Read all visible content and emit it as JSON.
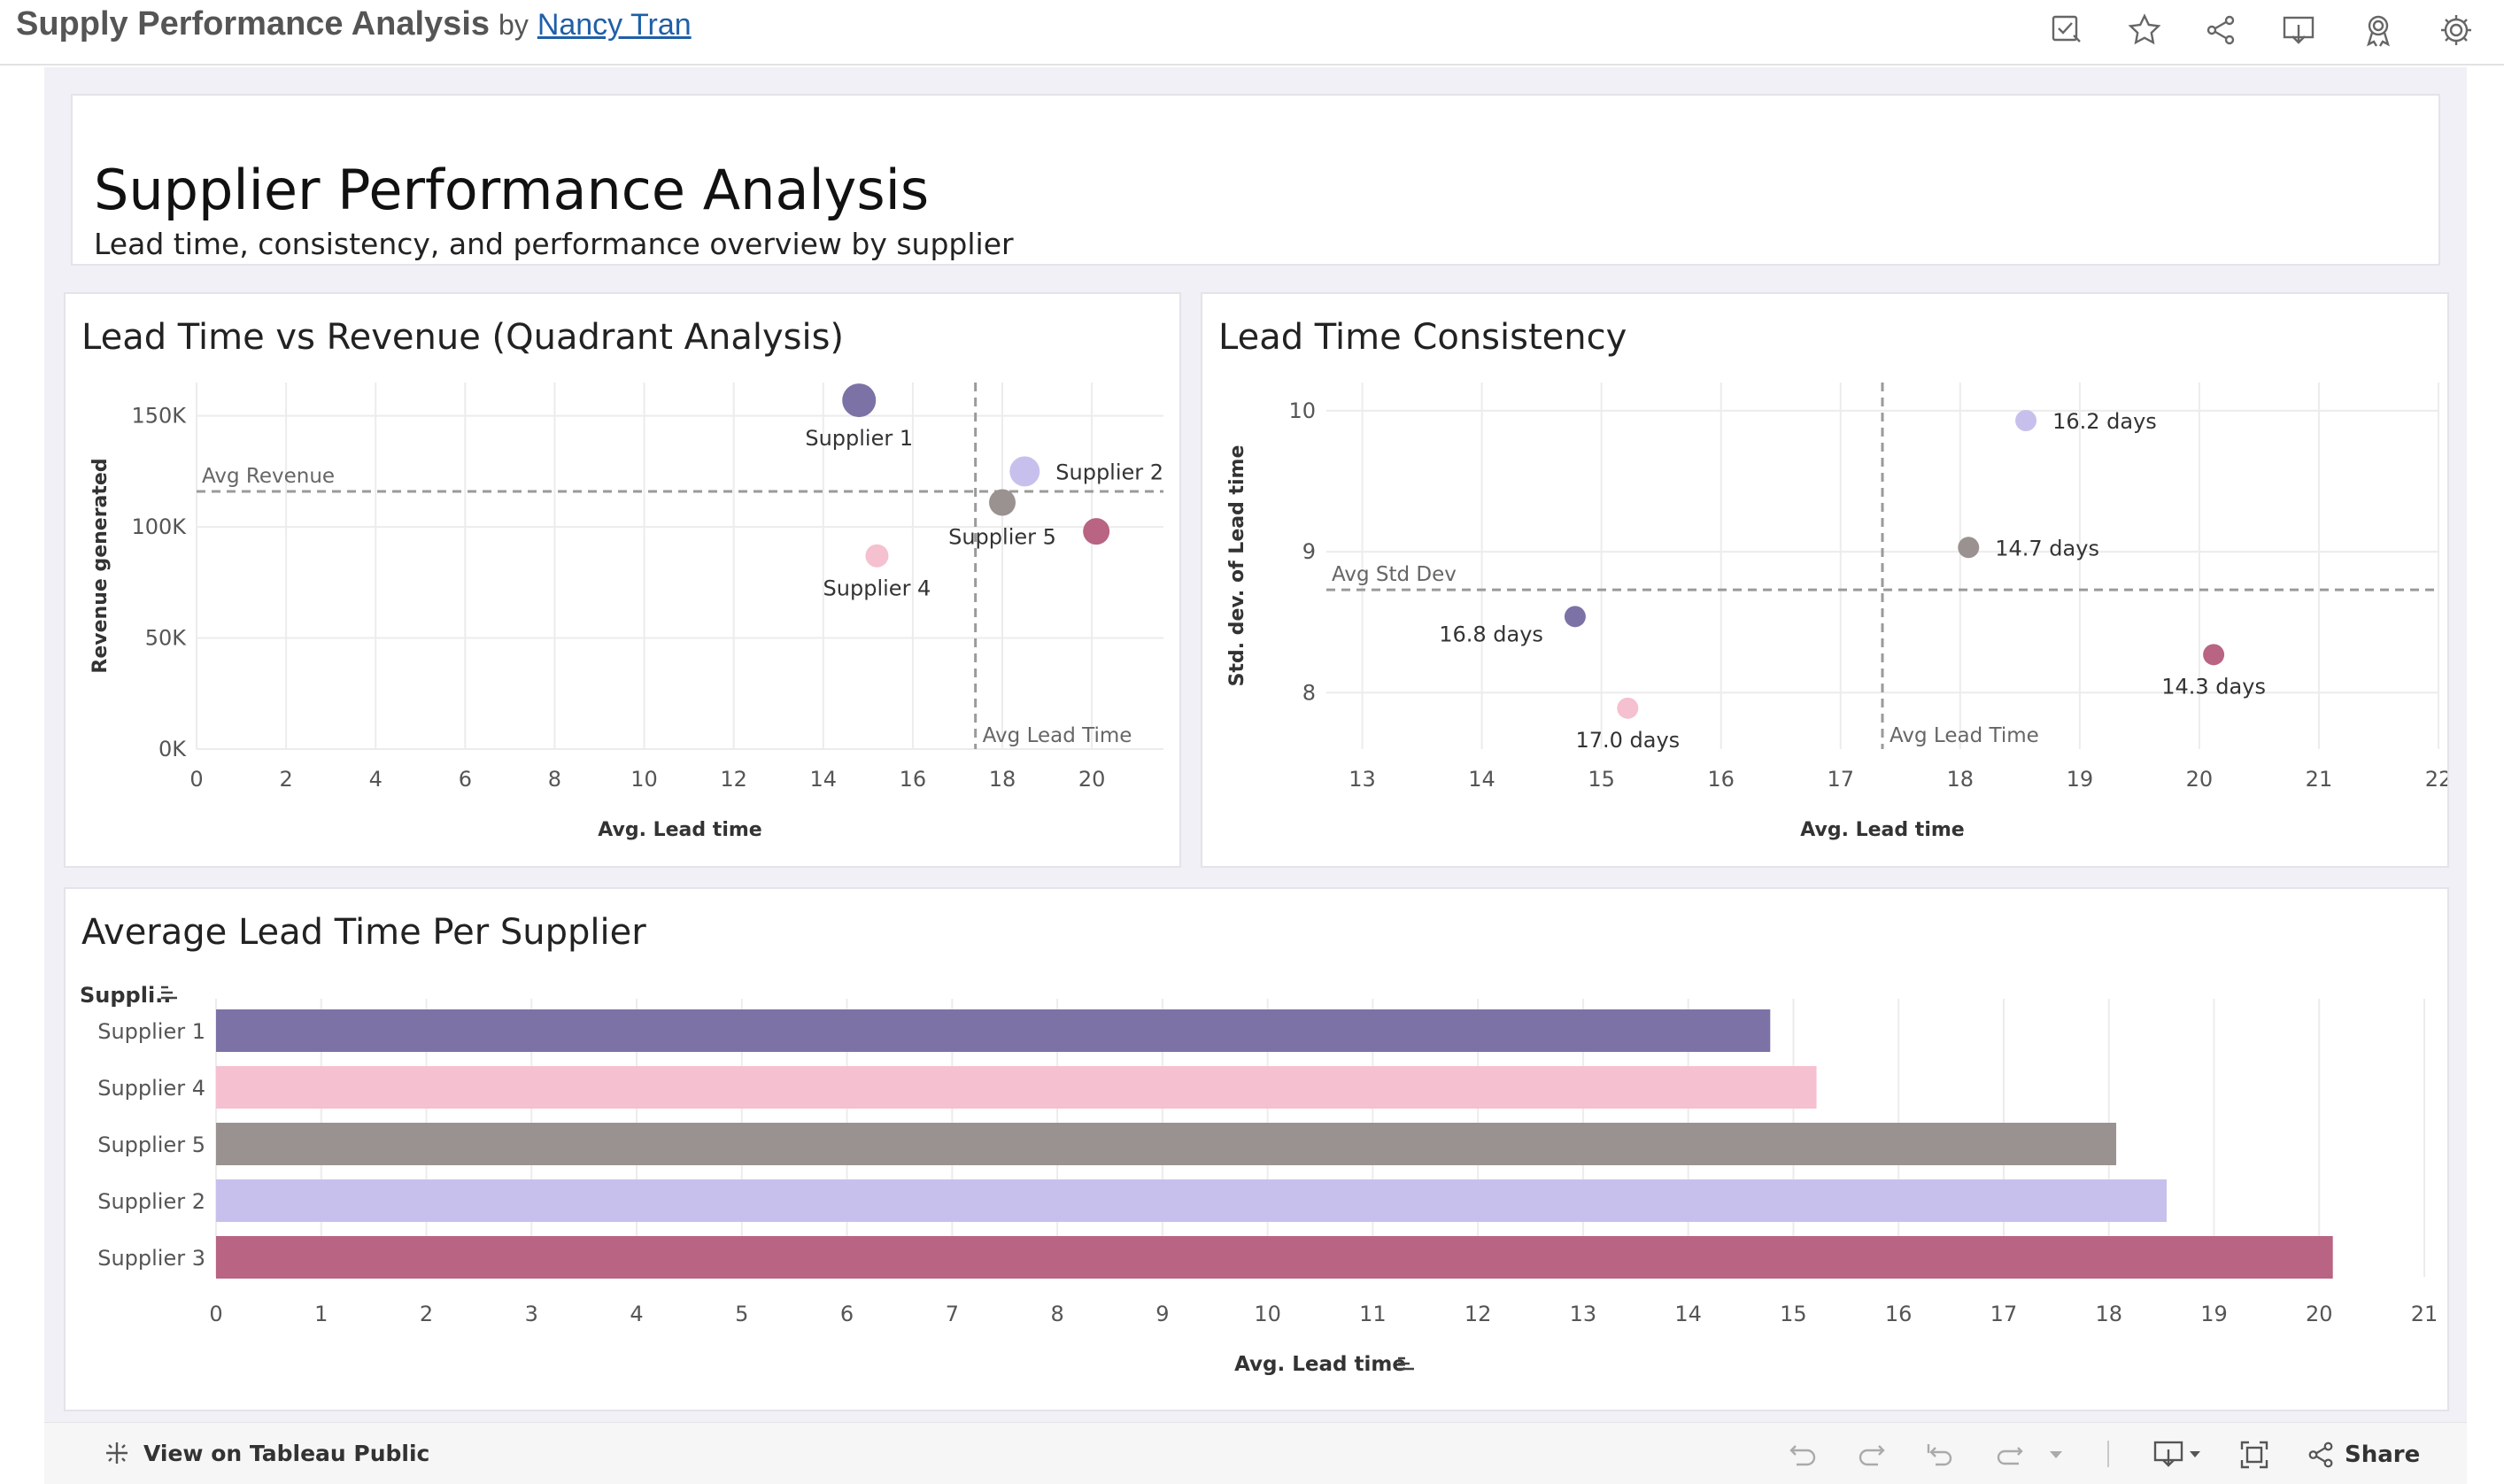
{
  "header": {
    "workbook_title": "Supply Performance Analysis",
    "by": "by",
    "author": "Nancy Tran",
    "icons": [
      "edit-icon",
      "star-icon",
      "share-icon",
      "download-icon",
      "award-icon",
      "gear-icon"
    ]
  },
  "dashboard": {
    "title": "Supplier Performance Analysis",
    "subtitle": "Lead time, consistency, and performance overview by supplier"
  },
  "colors": {
    "Supplier 1": "#7d72a6",
    "Supplier 2": "#c8c0ec",
    "Supplier 3": "#b86482",
    "Supplier 4": "#f5c0d0",
    "Supplier 5": "#9a9290",
    "reference_line": "#9a9a9a"
  },
  "chart_data": [
    {
      "type": "scatter",
      "title": "Lead Time vs Revenue (Quadrant Analysis)",
      "xlabel": "Avg. Lead time",
      "ylabel": "Revenue generated",
      "xlim": [
        0,
        21.6
      ],
      "ylim": [
        0,
        165000
      ],
      "xticks": [
        0,
        2,
        4,
        6,
        8,
        10,
        12,
        14,
        16,
        18,
        20
      ],
      "xtick_labels": [
        "0",
        "2",
        "4",
        "6",
        "8",
        "10",
        "12",
        "14",
        "16",
        "18",
        "20"
      ],
      "yticks": [
        0,
        50000,
        100000,
        150000
      ],
      "ytick_labels": [
        "0K",
        "50K",
        "100K",
        "150K"
      ],
      "points": [
        {
          "supplier": "Supplier 1",
          "label": "Supplier 1",
          "x": 14.8,
          "y": 157000,
          "label_pos": "below"
        },
        {
          "supplier": "Supplier 2",
          "label": "Supplier 2",
          "x": 18.5,
          "y": 125000,
          "label_pos": "right"
        },
        {
          "supplier": "Supplier 5",
          "label": "Supplier 5",
          "x": 18.0,
          "y": 111000,
          "label_pos": "below"
        },
        {
          "supplier": "Supplier 3",
          "label": "",
          "x": 20.1,
          "y": 98000,
          "label_pos": "none"
        },
        {
          "supplier": "Supplier 4",
          "label": "Supplier 4",
          "x": 15.2,
          "y": 87000,
          "label_pos": "below"
        }
      ],
      "reference_lines": [
        {
          "axis": "y",
          "value": 116000,
          "label": "Avg Revenue"
        },
        {
          "axis": "x",
          "value": 17.4,
          "label": "Avg Lead Time"
        }
      ],
      "grid": true
    },
    {
      "type": "scatter",
      "title": "Lead Time Consistency",
      "xlabel": "Avg. Lead time",
      "ylabel": "Std. dev. of Lead time",
      "xlim": [
        12.7,
        22
      ],
      "ylim": [
        7.6,
        10.2
      ],
      "xticks": [
        13,
        14,
        15,
        16,
        17,
        18,
        19,
        20,
        21,
        22
      ],
      "xtick_labels": [
        "13",
        "14",
        "15",
        "16",
        "17",
        "18",
        "19",
        "20",
        "21",
        "22"
      ],
      "yticks": [
        8,
        9,
        10
      ],
      "ytick_labels": [
        "8",
        "9",
        "10"
      ],
      "points": [
        {
          "supplier": "Supplier 2",
          "label": "16.2 days",
          "x": 18.55,
          "y": 9.93,
          "label_pos": "right"
        },
        {
          "supplier": "Supplier 5",
          "label": "14.7 days",
          "x": 18.07,
          "y": 9.03,
          "label_pos": "right"
        },
        {
          "supplier": "Supplier 1",
          "label": "16.8 days",
          "x": 14.78,
          "y": 8.54,
          "label_pos": "left-below"
        },
        {
          "supplier": "Supplier 3",
          "label": "14.3 days",
          "x": 20.12,
          "y": 8.27,
          "label_pos": "below"
        },
        {
          "supplier": "Supplier 4",
          "label": "17.0 days",
          "x": 15.22,
          "y": 7.89,
          "label_pos": "below"
        }
      ],
      "reference_lines": [
        {
          "axis": "y",
          "value": 8.73,
          "label": "Avg Std Dev"
        },
        {
          "axis": "x",
          "value": 17.35,
          "label": "Avg Lead Time"
        }
      ],
      "grid": true
    },
    {
      "type": "bar",
      "orientation": "horizontal",
      "title": "Average Lead Time Per Supplier",
      "xlabel": "Avg. Lead time",
      "ylabel": "Suppli..",
      "categories": [
        "Supplier 1",
        "Supplier 4",
        "Supplier 5",
        "Supplier 2",
        "Supplier 3"
      ],
      "values": [
        14.78,
        15.22,
        18.07,
        18.55,
        20.13
      ],
      "xlim": [
        0,
        21
      ],
      "xticks": [
        0,
        1,
        2,
        3,
        4,
        5,
        6,
        7,
        8,
        9,
        10,
        11,
        12,
        13,
        14,
        15,
        16,
        17,
        18,
        19,
        20,
        21
      ],
      "xtick_labels": [
        "0",
        "1",
        "2",
        "3",
        "4",
        "5",
        "6",
        "7",
        "8",
        "9",
        "10",
        "11",
        "12",
        "13",
        "14",
        "15",
        "16",
        "17",
        "18",
        "19",
        "20",
        "21"
      ],
      "grid": true
    }
  ],
  "footer": {
    "view_label": "View on Tableau Public",
    "share_label": "Share",
    "icons": [
      "undo-icon",
      "redo-icon",
      "revert-icon",
      "refresh-icon",
      "dropdown-icon",
      "download-icon",
      "fullscreen-icon",
      "share-icon"
    ]
  }
}
